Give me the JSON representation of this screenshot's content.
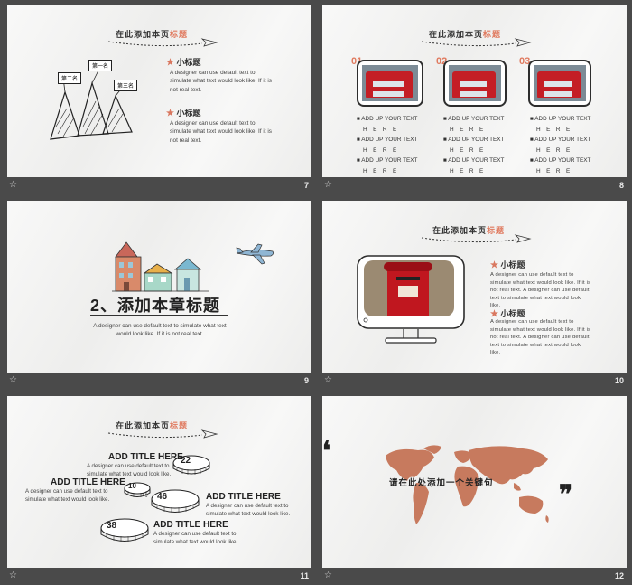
{
  "colors": {
    "accent": "#e07a5f",
    "background": "#f2f2f1",
    "frame": "#4a4a4a"
  },
  "slides": {
    "s7": {
      "title_main": "在此添加本页",
      "title_hl": "标题",
      "peaks": [
        "第二名",
        "第一名",
        "第三名"
      ],
      "sub1": "小标题",
      "sub2": "小标题",
      "para1": "A designer can use default text to simulate what text would look like. If it is not real text.",
      "para2": "A designer can use default text to simulate what text would look like. If it is not real text.",
      "num": "7"
    },
    "s8": {
      "title_main": "在此添加本页",
      "title_hl": "标题",
      "n1": "01",
      "n2": "02",
      "n3": "03",
      "bullet_a": "ADD UP YOUR TEXT",
      "bullet_b": "HERE",
      "num": "8"
    },
    "s9": {
      "title": "2、添加本章标题",
      "para": "A designer can use default text to simulate what text would look like. If it is not real text.",
      "num": "9"
    },
    "s10": {
      "title_main": "在此添加本页",
      "title_hl": "标题",
      "sub1": "小标题",
      "sub2": "小标题",
      "para1": "A designer can use default text to simulate what text would look like. If it is not real text. A designer can use default text to simulate what text would look like.",
      "para2": "A designer can use default text to simulate what text would look like. If it is not real text. A designer can use default text to simulate what text would look like.",
      "num": "10"
    },
    "s11": {
      "title_main": "在此添加本页",
      "title_hl": "标题",
      "pies": [
        "22",
        "10",
        "46",
        "38"
      ],
      "pie_unit": "%",
      "items": [
        {
          "title": "ADD TITLE HERE",
          "text": "A designer can use default text to simulate what text would look like."
        },
        {
          "title": "ADD TITLE HERE",
          "text": "A designer can use default text to simulate what text would look like."
        },
        {
          "title": "ADD TITLE HERE",
          "text": "A designer can use default text to simulate what text would look like."
        },
        {
          "title": "ADD TITLE HERE",
          "text": "A designer can use default text to simulate what text would look like."
        }
      ],
      "num": "11"
    },
    "s12": {
      "open_quote": "❛",
      "close_quote": "❞",
      "keyword": "请在此处添加一个关键句",
      "num": "12"
    }
  }
}
